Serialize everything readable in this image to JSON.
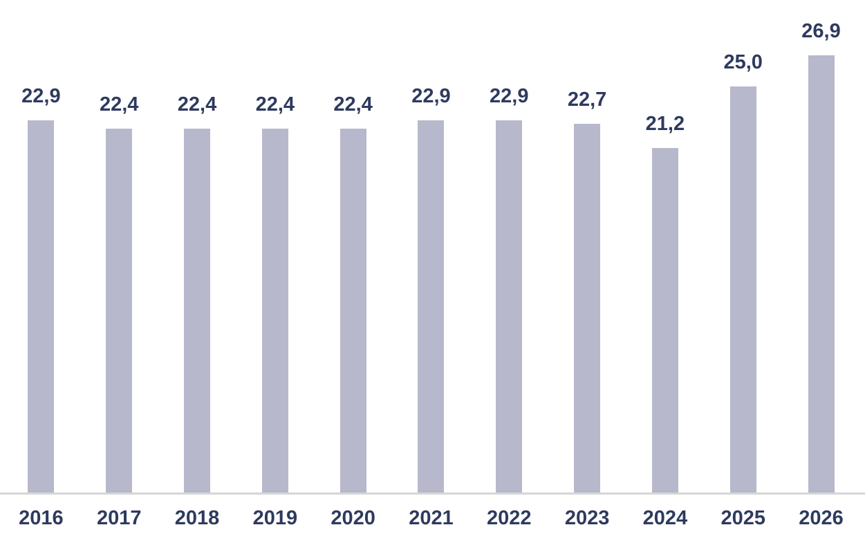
{
  "chart_data": {
    "type": "bar",
    "title": "",
    "xlabel": "",
    "ylabel": "",
    "categories": [
      "2016",
      "2017",
      "2018",
      "2019",
      "2020",
      "2021",
      "2022",
      "2023",
      "2024",
      "2025",
      "2026"
    ],
    "values": [
      22.9,
      22.4,
      22.4,
      22.4,
      22.4,
      22.9,
      22.9,
      22.7,
      21.2,
      25.0,
      26.9
    ],
    "value_labels": [
      "22,9",
      "22,4",
      "22,4",
      "22,4",
      "22,4",
      "22,9",
      "22,9",
      "22,7",
      "21,2",
      "25,0",
      "26,9"
    ],
    "ylim": [
      0,
      26.9
    ],
    "grid": false,
    "legend": false,
    "decimal_separator": ",",
    "colors": {
      "bar_fill": "#B7B8CB",
      "data_label": "#2E3A5E",
      "axis_tick_label": "#2E3A5E",
      "axis_line": "#D6D6D6",
      "background": "#FFFFFF"
    }
  }
}
